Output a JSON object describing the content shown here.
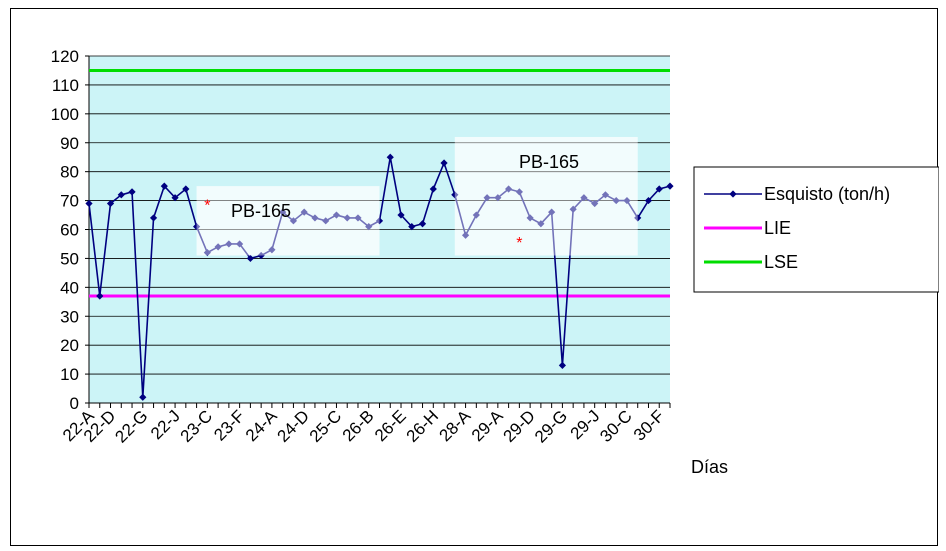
{
  "chart_data": {
    "type": "line",
    "title": "",
    "xlabel": "Días",
    "ylabel": "",
    "ylim": [
      0,
      120
    ],
    "yticks": [
      0,
      10,
      20,
      30,
      40,
      50,
      60,
      70,
      80,
      90,
      100,
      110,
      120
    ],
    "grid": true,
    "legend_position": "right",
    "tick_labels_x": [
      {
        "index": 0,
        "label": "22-A"
      },
      {
        "index": 2,
        "label": "22-D"
      },
      {
        "index": 5,
        "label": "22-G"
      },
      {
        "index": 8,
        "label": "22-J"
      },
      {
        "index": 11,
        "label": "23-C"
      },
      {
        "index": 14,
        "label": "23-F"
      },
      {
        "index": 17,
        "label": "24-A"
      },
      {
        "index": 20,
        "label": "24-D"
      },
      {
        "index": 23,
        "label": "25-C"
      },
      {
        "index": 26,
        "label": "26-B"
      },
      {
        "index": 29,
        "label": "26-E"
      },
      {
        "index": 32,
        "label": "26-H"
      },
      {
        "index": 35,
        "label": "28-A"
      },
      {
        "index": 38,
        "label": "29-A"
      },
      {
        "index": 41,
        "label": "29-D"
      },
      {
        "index": 44,
        "label": "29-G"
      },
      {
        "index": 47,
        "label": "29-J"
      },
      {
        "index": 50,
        "label": "30-C"
      },
      {
        "index": 53,
        "label": "30-F"
      }
    ],
    "series": [
      {
        "name": "Esquisto (ton/h)",
        "color": "#000080",
        "values": [
          69,
          37,
          69,
          72,
          73,
          2,
          64,
          75,
          71,
          74,
          61,
          52,
          54,
          55,
          55,
          50,
          51,
          53,
          66,
          63,
          66,
          64,
          63,
          65,
          64,
          64,
          61,
          63,
          85,
          65,
          61,
          62,
          74,
          83,
          72,
          58,
          65,
          71,
          71,
          74,
          73,
          64,
          62,
          66,
          13,
          67,
          71,
          69,
          72,
          70,
          70,
          64,
          70,
          74,
          75
        ]
      },
      {
        "name": "LIE",
        "color": "#ff00ff",
        "values": [
          37
        ]
      },
      {
        "name": "LSE",
        "color": "#00dd00",
        "values": [
          115
        ]
      }
    ],
    "annotations": [
      {
        "text": "PB-165",
        "x_from": 10,
        "x_to": 27,
        "y_from": 51,
        "y_to": 75
      },
      {
        "text": "PB-165",
        "x_from": 34,
        "x_to": 51,
        "y_from": 51,
        "y_to": 92
      }
    ],
    "markers": [
      {
        "symbol": "*",
        "x": 11,
        "y": 70,
        "color": "#ff0000"
      },
      {
        "symbol": "*",
        "x": 40,
        "y": 57,
        "color": "#ff0000"
      }
    ]
  }
}
